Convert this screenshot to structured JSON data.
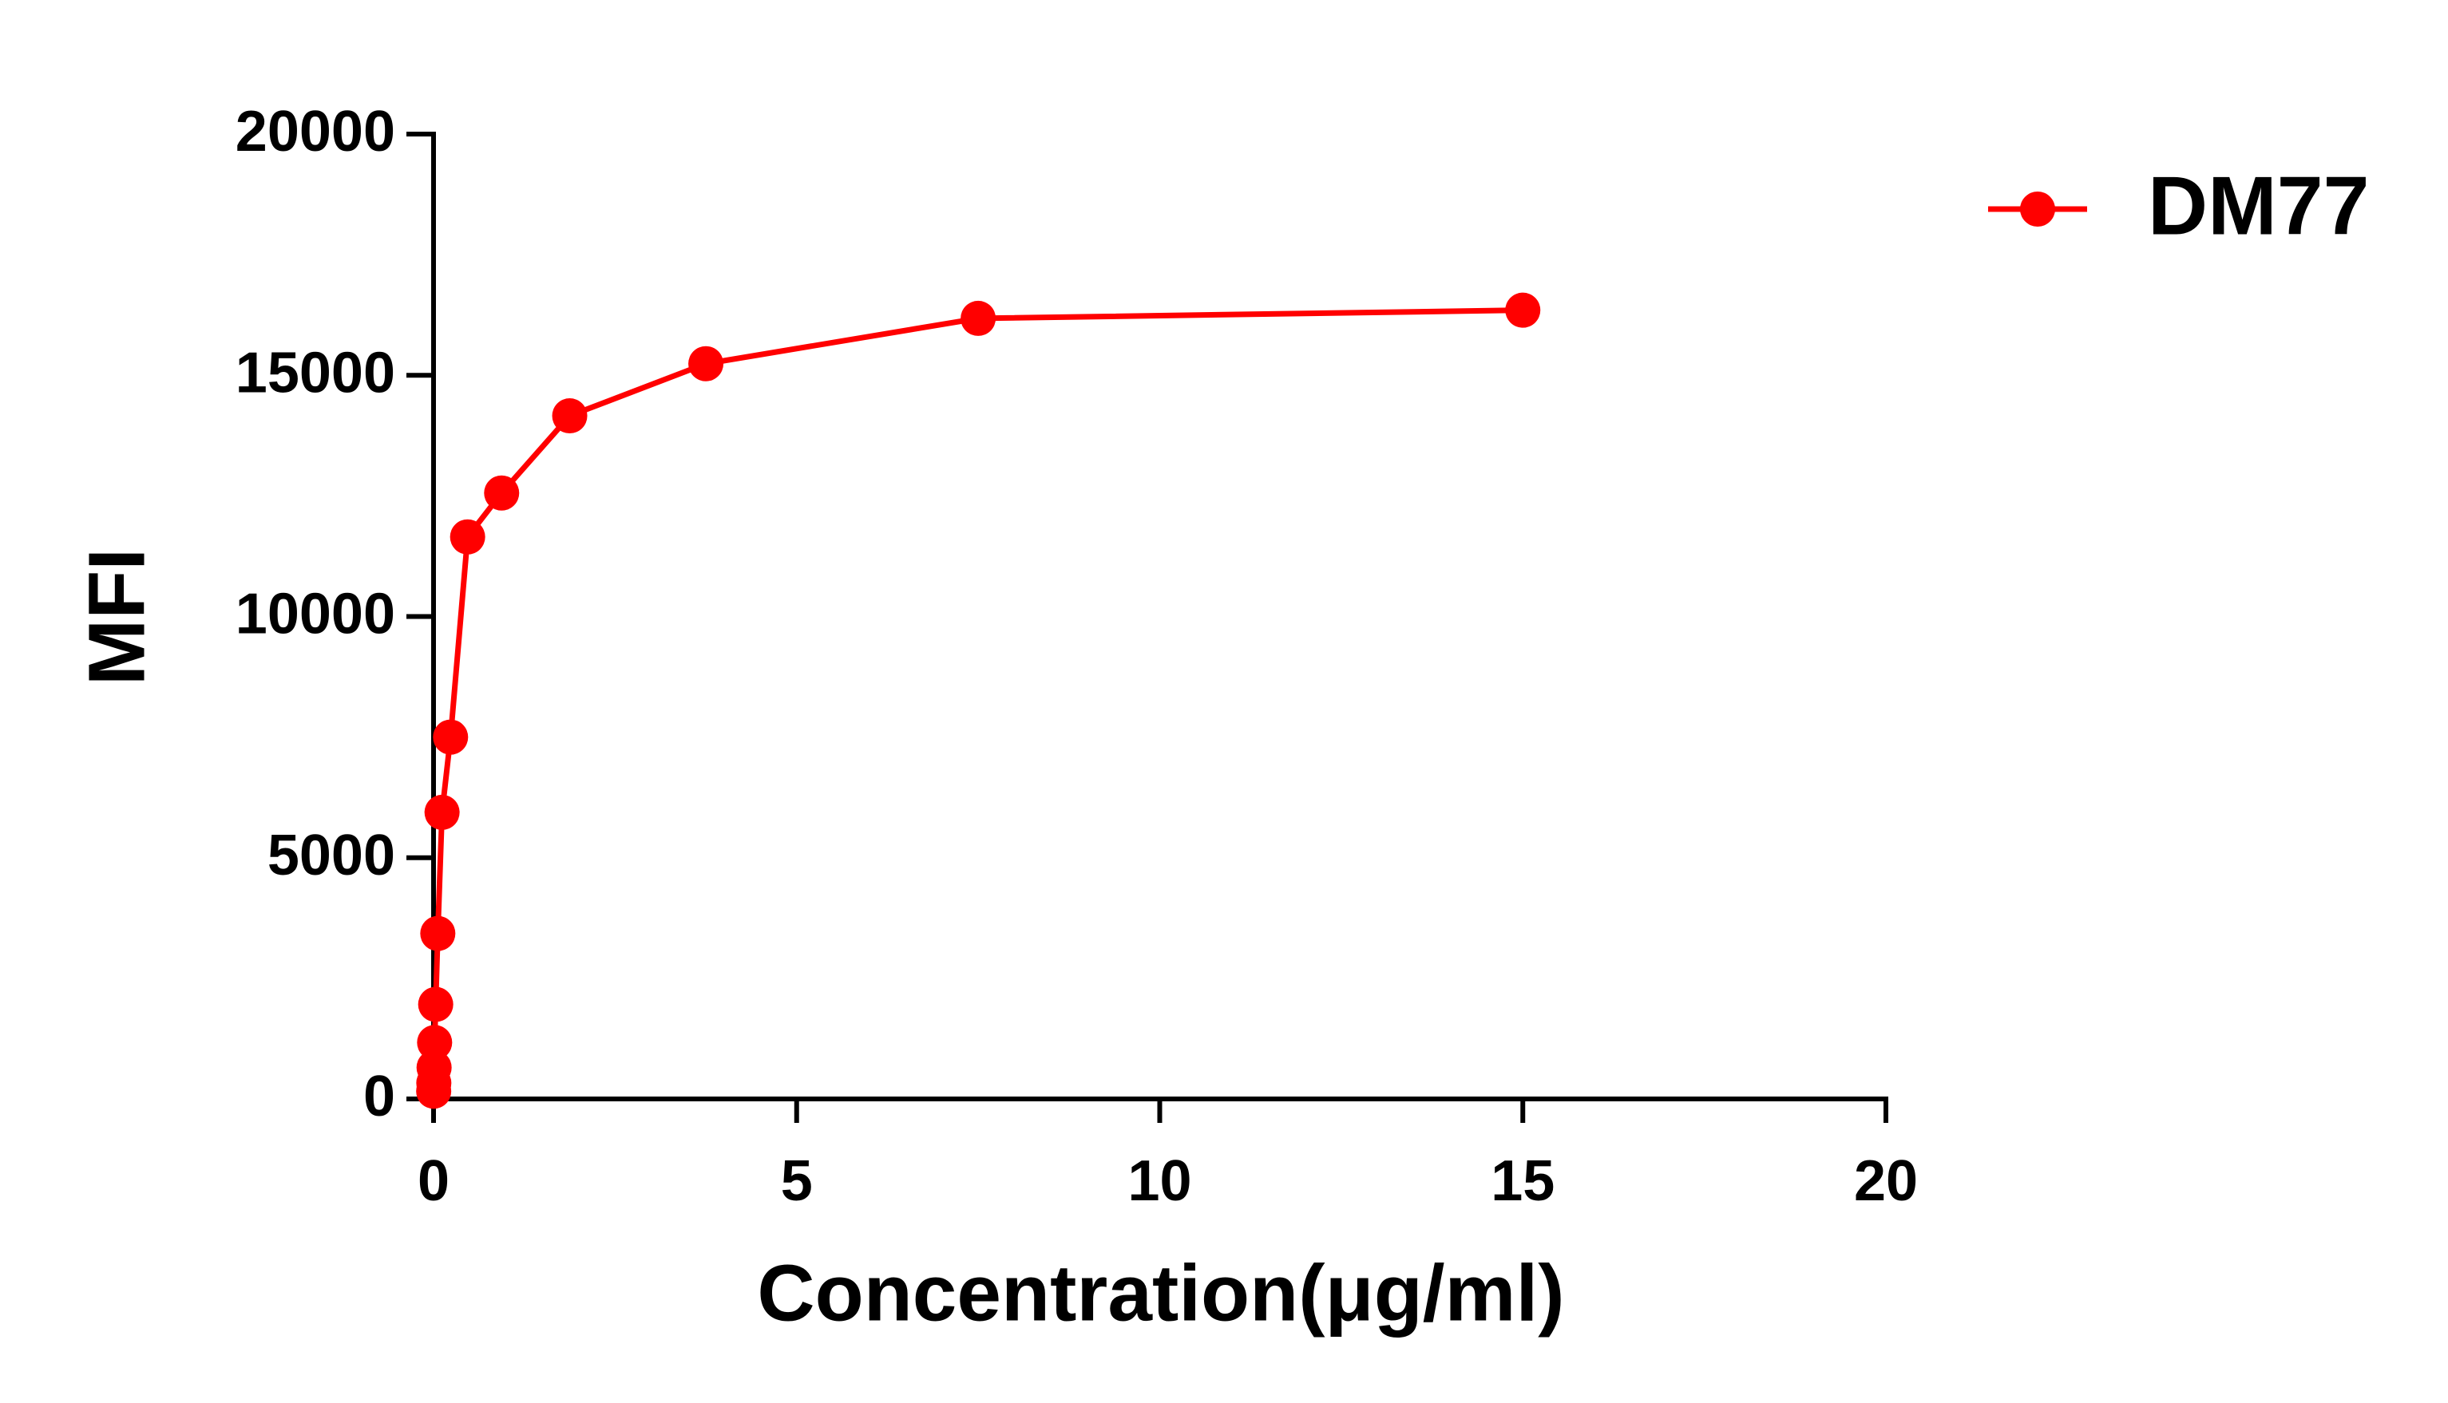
{
  "chart_data": {
    "type": "line",
    "x_label": "Concentration(μg/ml)",
    "y_label": "MFI",
    "xlim": [
      0,
      20
    ],
    "xticks": [
      0,
      5,
      10,
      15,
      20
    ],
    "ylim": [
      0,
      20000
    ],
    "yticks": [
      0,
      5000,
      10000,
      15000,
      20000
    ],
    "grid": false,
    "legend": "upper right",
    "series": [
      {
        "name": "DM77",
        "color": "#ff0000",
        "x": [
          0.00183,
          0.00366,
          0.0073,
          0.0146,
          0.0293,
          0.0586,
          0.117,
          0.234,
          0.469,
          0.9375,
          1.875,
          3.75,
          7.5,
          15
        ],
        "values": [
          160,
          330,
          650,
          1170,
          1960,
          3430,
          5940,
          7500,
          11650,
          12560,
          14160,
          15240,
          16180,
          16350
        ]
      }
    ]
  }
}
